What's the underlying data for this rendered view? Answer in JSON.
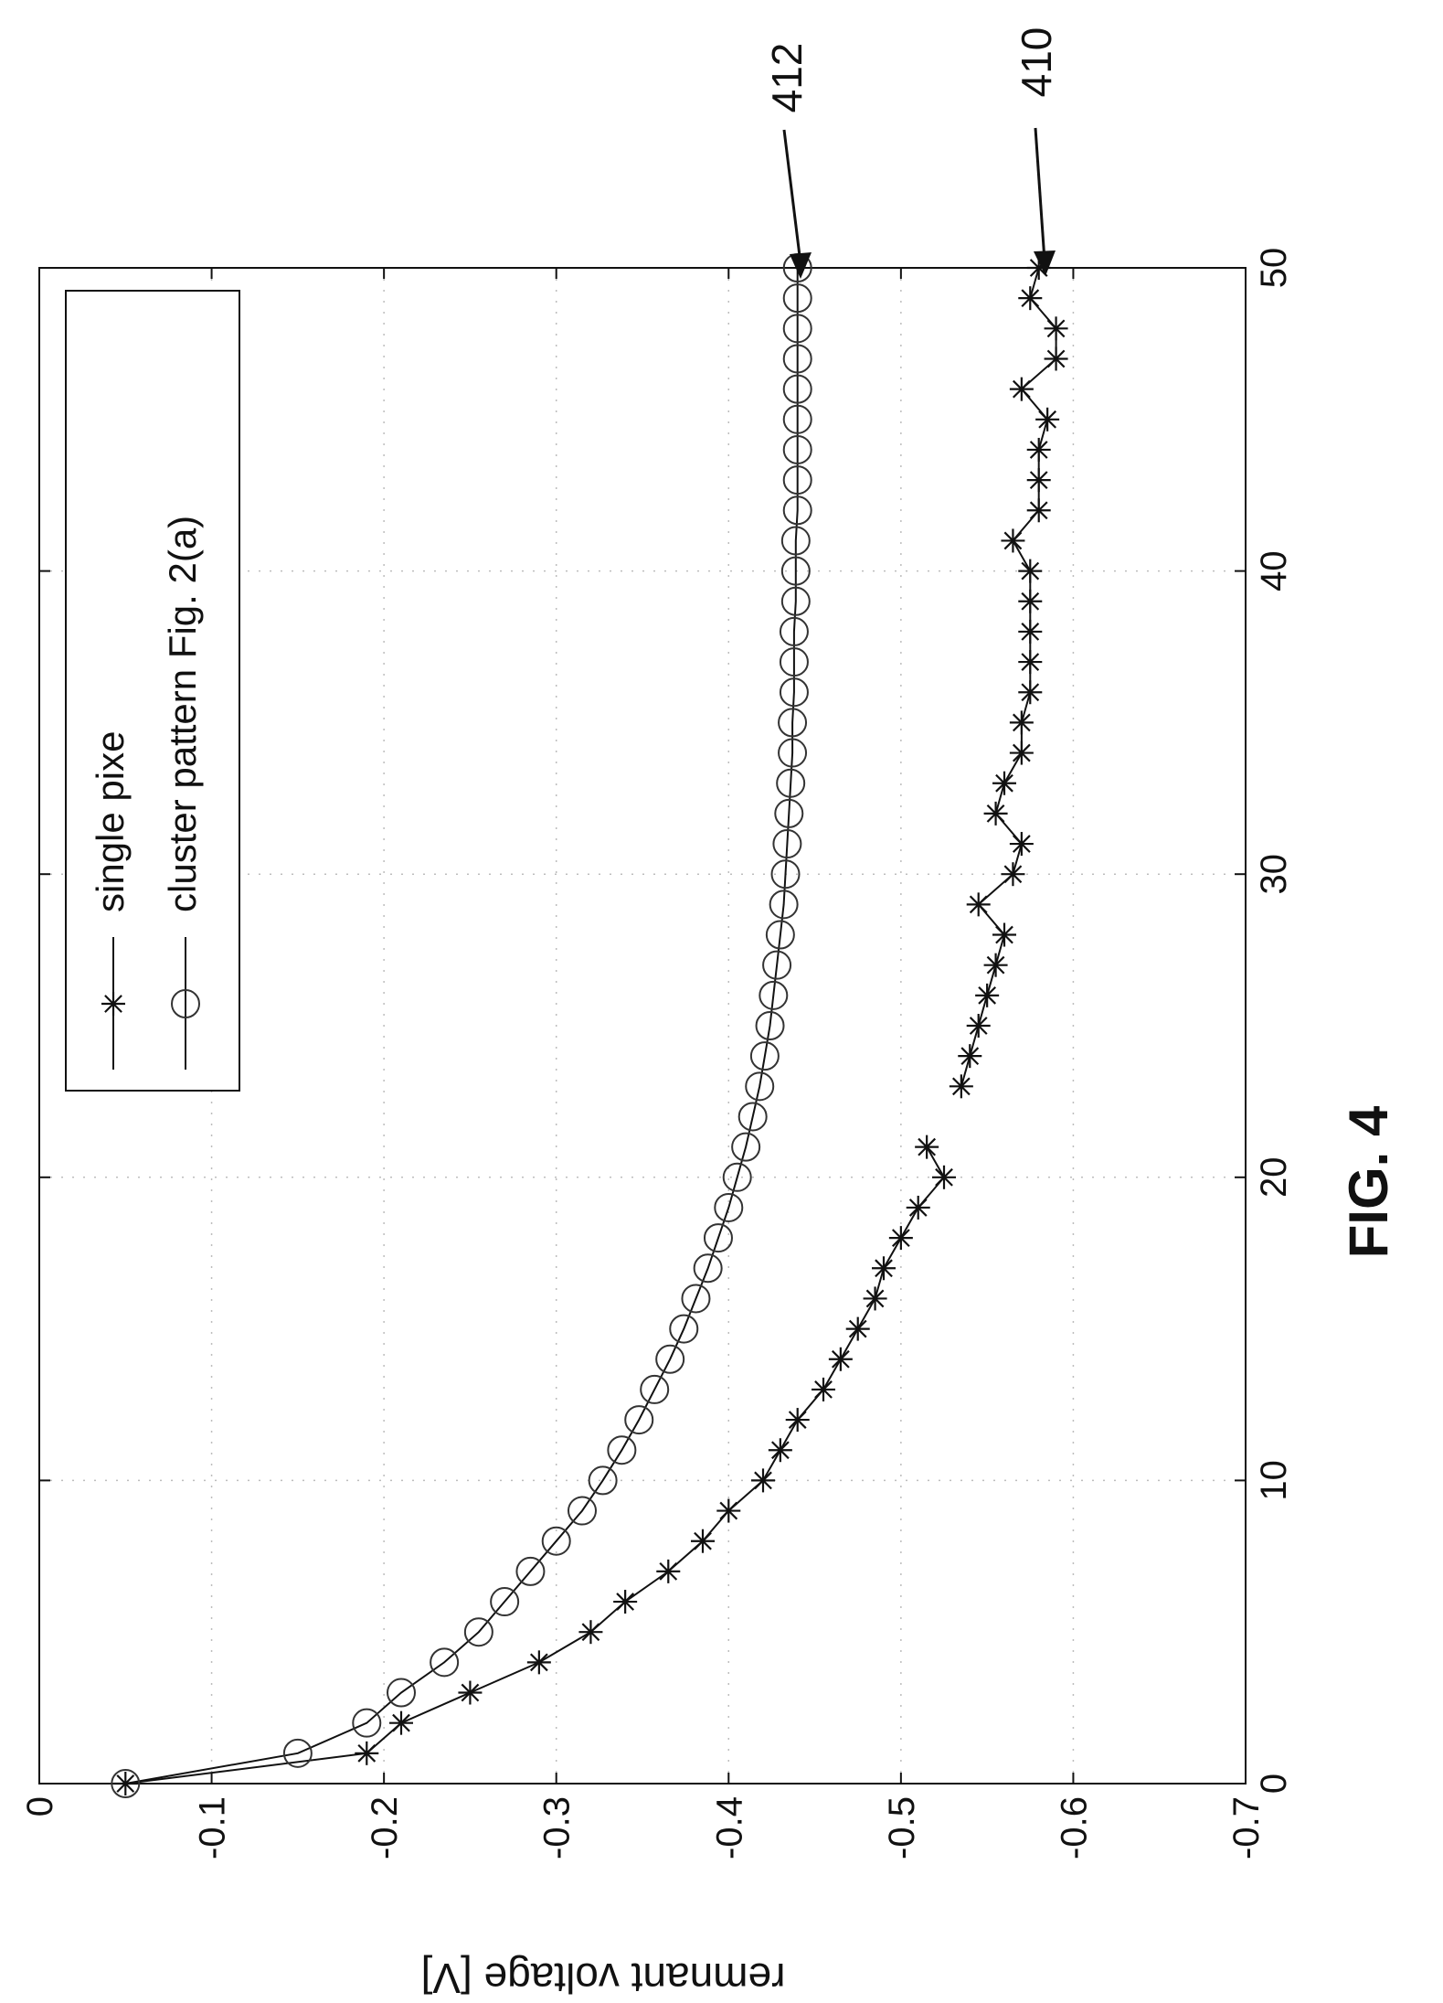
{
  "figure_label": "FIG. 4",
  "colors": {
    "ink": "#111111",
    "grid": "#bdbdbd",
    "background": "#ffffff"
  },
  "chart_data": {
    "type": "line",
    "ylabel": "remnant voltage [V]",
    "xlim": [
      0,
      50
    ],
    "ylim": [
      -0.7,
      0
    ],
    "xticks": [
      0,
      10,
      20,
      30,
      40,
      50
    ],
    "xtick_labels": [
      "0",
      "10",
      "20",
      "30",
      "40",
      "50"
    ],
    "yticks": [
      0,
      -0.1,
      -0.2,
      -0.3,
      -0.4,
      -0.5,
      -0.6,
      -0.7
    ],
    "ytick_labels": [
      "0",
      "-0.1",
      "-0.2",
      "-0.3",
      "-0.4",
      "-0.5",
      "-0.6",
      "-0.7"
    ],
    "grid": true,
    "legend_position": "top-left",
    "series": [
      {
        "name": "single pixe",
        "marker": "star",
        "ref_label": "410",
        "x": [
          0,
          1,
          2,
          3,
          4,
          5,
          6,
          7,
          8,
          9,
          10,
          11,
          12,
          13,
          14,
          15,
          16,
          17,
          18,
          19,
          20,
          21,
          23,
          24,
          25,
          26,
          27,
          28,
          29,
          30,
          31,
          32,
          33,
          34,
          35,
          36,
          37,
          38,
          39,
          40,
          41,
          42,
          43,
          44,
          45,
          46,
          47,
          48,
          49,
          50
        ],
        "y": [
          -0.05,
          -0.19,
          -0.21,
          -0.25,
          -0.29,
          -0.32,
          -0.34,
          -0.365,
          -0.385,
          -0.4,
          -0.42,
          -0.43,
          -0.44,
          -0.455,
          -0.465,
          -0.475,
          -0.485,
          -0.49,
          -0.5,
          -0.51,
          -0.525,
          -0.515,
          -0.535,
          -0.54,
          -0.545,
          -0.55,
          -0.555,
          -0.56,
          -0.545,
          -0.565,
          -0.57,
          -0.555,
          -0.56,
          -0.57,
          -0.57,
          -0.575,
          -0.575,
          -0.575,
          -0.575,
          -0.575,
          -0.565,
          -0.58,
          -0.58,
          -0.58,
          -0.585,
          -0.57,
          -0.59,
          -0.59,
          -0.575,
          -0.58
        ]
      },
      {
        "name": "cluster pattern Fig. 2(a)",
        "marker": "circle",
        "ref_label": "412",
        "x": [
          0,
          1,
          2,
          3,
          4,
          5,
          6,
          7,
          8,
          9,
          10,
          11,
          12,
          13,
          14,
          15,
          16,
          17,
          18,
          19,
          20,
          21,
          22,
          23,
          24,
          25,
          26,
          27,
          28,
          29,
          30,
          31,
          32,
          33,
          34,
          35,
          36,
          37,
          38,
          39,
          40,
          41,
          42,
          43,
          44,
          45,
          46,
          47,
          48,
          49,
          50
        ],
        "y": [
          -0.05,
          -0.15,
          -0.19,
          -0.21,
          -0.235,
          -0.255,
          -0.27,
          -0.285,
          -0.3,
          -0.315,
          -0.327,
          -0.338,
          -0.348,
          -0.357,
          -0.366,
          -0.374,
          -0.381,
          -0.388,
          -0.394,
          -0.4,
          -0.405,
          -0.41,
          -0.414,
          -0.418,
          -0.421,
          -0.424,
          -0.426,
          -0.428,
          -0.43,
          -0.432,
          -0.433,
          -0.434,
          -0.435,
          -0.436,
          -0.437,
          -0.437,
          -0.438,
          -0.438,
          -0.438,
          -0.439,
          -0.439,
          -0.439,
          -0.44,
          -0.44,
          -0.44,
          -0.44,
          -0.44,
          -0.44,
          -0.44,
          -0.44,
          -0.44
        ]
      }
    ]
  }
}
